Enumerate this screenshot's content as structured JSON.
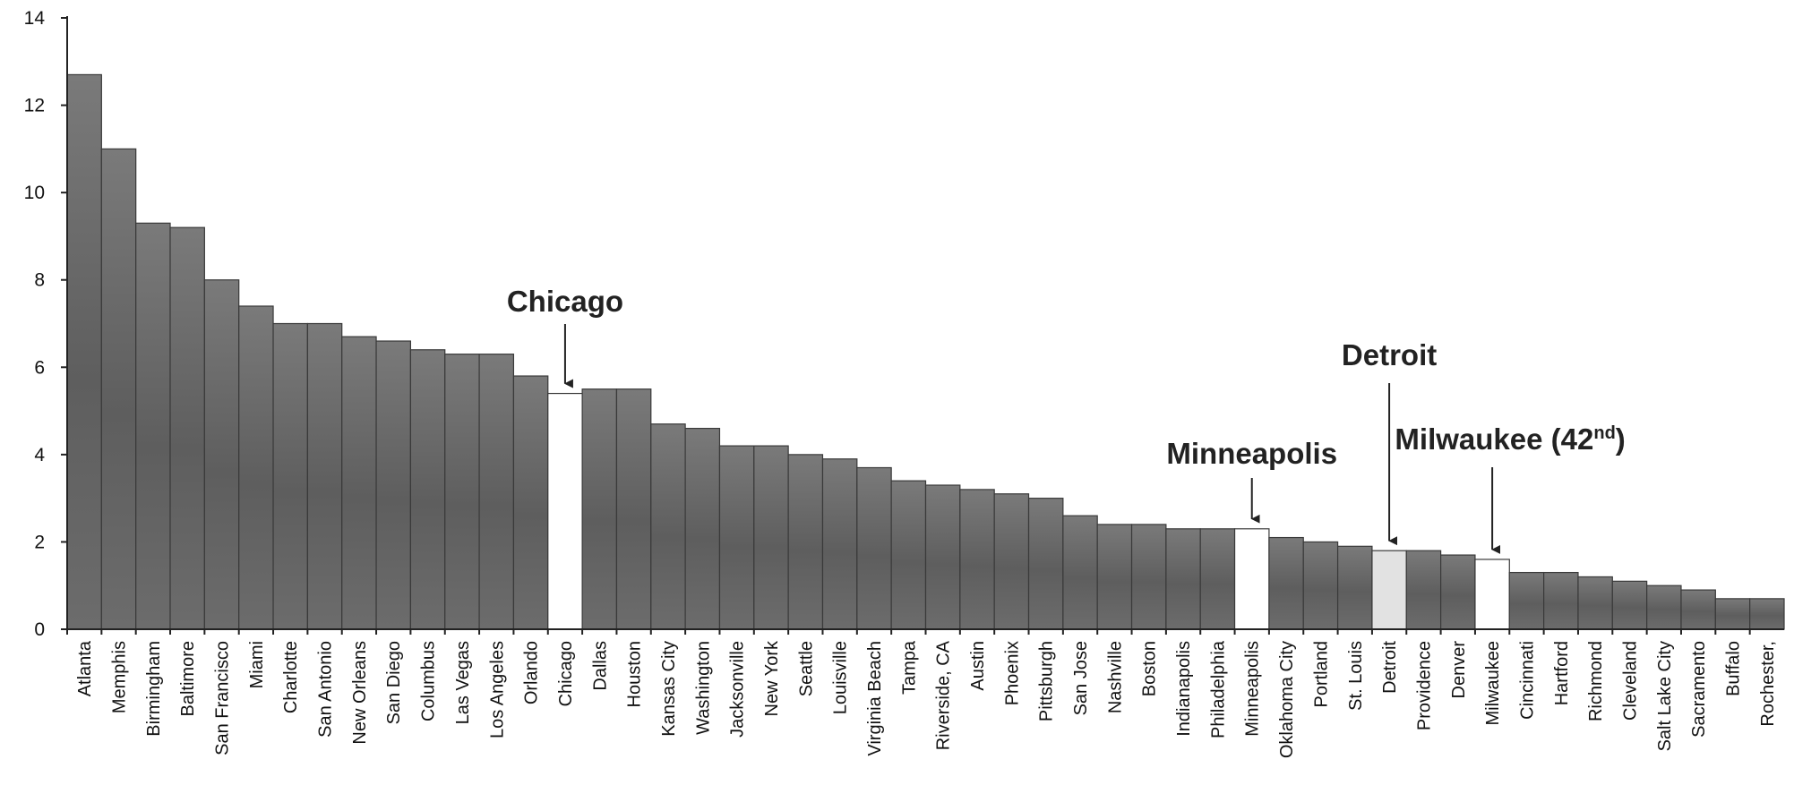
{
  "chart_data": {
    "type": "bar",
    "categories": [
      "Atlanta",
      "Memphis",
      "Birmingham",
      "Baltimore",
      "San Francisco",
      "Miami",
      "Charlotte",
      "San Antonio",
      "New Orleans",
      "San Diego",
      "Columbus",
      "Las Vegas",
      "Los Angeles",
      "Orlando",
      "Chicago",
      "Dallas",
      "Houston",
      "Kansas City",
      "Washington",
      "Jacksonville",
      "New York",
      "Seattle",
      "Louisville",
      "Virginia Beach",
      "Tampa",
      "Riverside, CA",
      "Austin",
      "Phoenix",
      "Pittsburgh",
      "San Jose",
      "Nashville",
      "Boston",
      "Indianapolis",
      "Philadelphia",
      "Minneapolis",
      "Oklahoma City",
      "Portland",
      "St. Louis",
      "Detroit",
      "Providence",
      "Denver",
      "Milwaukee",
      "Cincinnati",
      "Hartford",
      "Richmond",
      "Cleveland",
      "Salt Lake City",
      "Sacramento",
      "Buffalo",
      "Rochester,"
    ],
    "values": [
      12.7,
      11.0,
      9.3,
      9.2,
      8.0,
      7.4,
      7.0,
      7.0,
      6.7,
      6.6,
      6.4,
      6.3,
      6.3,
      5.8,
      5.4,
      5.5,
      5.5,
      4.7,
      4.6,
      4.2,
      4.2,
      4.0,
      3.9,
      3.7,
      3.4,
      3.3,
      3.2,
      3.1,
      3.0,
      2.6,
      2.4,
      2.4,
      2.3,
      2.3,
      2.3,
      2.1,
      2.0,
      1.9,
      1.8,
      1.8,
      1.7,
      1.6,
      1.3,
      1.3,
      1.2,
      1.1,
      1.0,
      0.9,
      0.7,
      0.7
    ],
    "highlighted": [
      "Chicago",
      "Minneapolis",
      "Detroit",
      "Milwaukee"
    ],
    "ylim": [
      0,
      14
    ],
    "yticks": [
      "0",
      "2",
      "4",
      "6",
      "8",
      "10",
      "12",
      "14"
    ],
    "annotations": [
      {
        "category": "Chicago",
        "text": "Chicago"
      },
      {
        "category": "Minneapolis",
        "text": "Minneapolis"
      },
      {
        "category": "Detroit",
        "text": "Detroit"
      },
      {
        "category": "Milwaukee",
        "text": "Milwaukee (42",
        "sup": "nd",
        "suffix": ")"
      }
    ],
    "title": "",
    "xlabel": "",
    "ylabel": "",
    "grid": false,
    "colors": {
      "bar": "#6e6e6e",
      "bar_stroke": "#3a3a3a",
      "highlight_white": "#ffffff",
      "highlight_light": "#e2e2e2",
      "axis": "#222222"
    }
  }
}
